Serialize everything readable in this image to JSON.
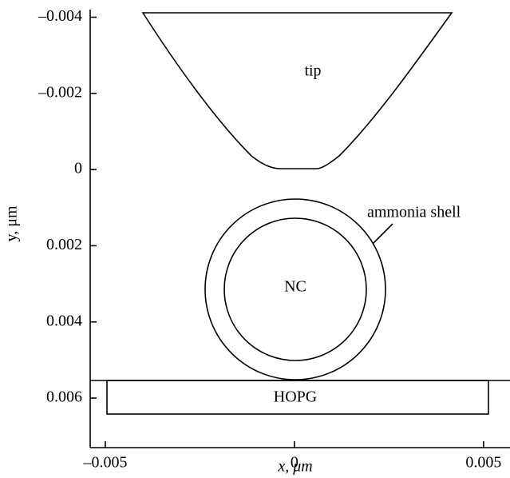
{
  "chart_data": {
    "type": "schematic",
    "xlabel": "x, μm",
    "ylabel": "y, μm",
    "xlim": [
      -0.0054,
      0.0057
    ],
    "xticks": [
      {
        "value": -0.005,
        "label": "–0.005"
      },
      0,
      0.005
    ],
    "ylim": [
      -0.0042,
      0.0073
    ],
    "y_inverted": true,
    "yticks": [
      {
        "value": -0.004,
        "label": "–0.004"
      },
      {
        "value": -0.002,
        "label": "–0.002"
      },
      0,
      0.002,
      0.004,
      0.006
    ],
    "annotations": [
      "tip",
      "ammonia shell",
      "NC",
      "HOPG"
    ]
  }
}
